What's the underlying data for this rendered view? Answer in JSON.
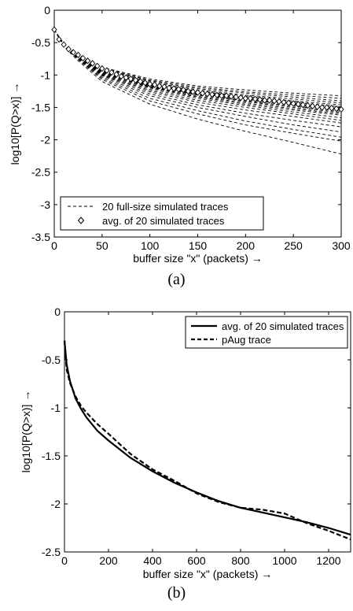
{
  "figure": {
    "caption_a": "(a)",
    "caption_b": "(b)"
  },
  "chart_data": [
    {
      "type": "line",
      "xlabel": "buffer size \"x\" (packets) →",
      "ylabel": "log10[P(Q>x)] →",
      "xlim": [
        0,
        300
      ],
      "ylim": [
        -3.5,
        0
      ],
      "xticks": [
        "0",
        "50",
        "100",
        "150",
        "200",
        "250",
        "300"
      ],
      "yticks": [
        "0",
        "-0.5",
        "-1",
        "-1.5",
        "-2",
        "-2.5",
        "-3",
        "-3.5"
      ],
      "grid": false,
      "legend_position": "bottom-left",
      "legend": [
        "20 full-size simulated traces",
        "avg. of 20 simulated traces"
      ],
      "series": [
        {
          "name": "20 full-size simulated traces",
          "style": "dashed",
          "x": [
            0,
            10,
            25,
            50,
            100,
            150,
            200,
            250,
            300
          ],
          "traces": [
            [
              -0.3,
              -0.52,
              -0.68,
              -0.88,
              -1.06,
              -1.17,
              -1.23,
              -1.28,
              -1.32
            ],
            [
              -0.3,
              -0.52,
              -0.68,
              -0.89,
              -1.08,
              -1.19,
              -1.26,
              -1.31,
              -1.36
            ],
            [
              -0.3,
              -0.52,
              -0.68,
              -0.89,
              -1.09,
              -1.21,
              -1.28,
              -1.34,
              -1.4
            ],
            [
              -0.3,
              -0.52,
              -0.69,
              -0.9,
              -1.11,
              -1.23,
              -1.31,
              -1.37,
              -1.43
            ],
            [
              -0.3,
              -0.52,
              -0.69,
              -0.91,
              -1.13,
              -1.25,
              -1.33,
              -1.4,
              -1.46
            ],
            [
              -0.3,
              -0.52,
              -0.69,
              -0.92,
              -1.14,
              -1.26,
              -1.35,
              -1.42,
              -1.49
            ],
            [
              -0.3,
              -0.52,
              -0.69,
              -0.93,
              -1.15,
              -1.28,
              -1.37,
              -1.45,
              -1.52
            ],
            [
              -0.3,
              -0.52,
              -0.7,
              -0.93,
              -1.16,
              -1.29,
              -1.38,
              -1.46,
              -1.54
            ],
            [
              -0.3,
              -0.53,
              -0.7,
              -0.94,
              -1.17,
              -1.3,
              -1.4,
              -1.48,
              -1.56
            ],
            [
              -0.3,
              -0.53,
              -0.7,
              -0.95,
              -1.18,
              -1.31,
              -1.41,
              -1.5,
              -1.58
            ],
            [
              -0.3,
              -0.53,
              -0.71,
              -0.96,
              -1.19,
              -1.33,
              -1.43,
              -1.52,
              -1.6
            ],
            [
              -0.3,
              -0.53,
              -0.71,
              -0.97,
              -1.2,
              -1.34,
              -1.45,
              -1.54,
              -1.62
            ],
            [
              -0.3,
              -0.53,
              -0.72,
              -0.98,
              -1.22,
              -1.36,
              -1.47,
              -1.57,
              -1.66
            ],
            [
              -0.3,
              -0.53,
              -0.72,
              -0.99,
              -1.24,
              -1.39,
              -1.5,
              -1.6,
              -1.7
            ],
            [
              -0.3,
              -0.54,
              -0.73,
              -1.0,
              -1.26,
              -1.42,
              -1.54,
              -1.64,
              -1.74
            ],
            [
              -0.3,
              -0.54,
              -0.73,
              -1.01,
              -1.29,
              -1.46,
              -1.59,
              -1.7,
              -1.8
            ],
            [
              -0.3,
              -0.54,
              -0.74,
              -1.03,
              -1.32,
              -1.5,
              -1.64,
              -1.77,
              -1.88
            ],
            [
              -0.3,
              -0.55,
              -0.75,
              -1.05,
              -1.36,
              -1.55,
              -1.71,
              -1.84,
              -1.96
            ],
            [
              -0.3,
              -0.55,
              -0.76,
              -1.07,
              -1.4,
              -1.6,
              -1.77,
              -1.9,
              -2.02
            ],
            [
              -0.3,
              -0.56,
              -0.78,
              -1.1,
              -1.45,
              -1.68,
              -1.87,
              -2.04,
              -2.22
            ]
          ]
        },
        {
          "name": "avg. of 20 simulated traces",
          "style": "diamond-markers",
          "x": [
            0,
            5,
            10,
            15,
            20,
            25,
            30,
            35,
            40,
            45,
            50,
            55,
            60,
            65,
            70,
            75,
            80,
            85,
            90,
            95,
            100,
            105,
            110,
            115,
            120,
            125,
            130,
            135,
            140,
            145,
            150,
            155,
            160,
            165,
            170,
            175,
            180,
            185,
            190,
            195,
            200,
            205,
            210,
            215,
            220,
            225,
            230,
            235,
            240,
            245,
            250,
            255,
            260,
            265,
            270,
            275,
            280,
            285,
            290,
            295,
            300
          ],
          "y": [
            -0.3,
            -0.45,
            -0.53,
            -0.6,
            -0.65,
            -0.69,
            -0.74,
            -0.78,
            -0.82,
            -0.86,
            -0.9,
            -0.93,
            -0.96,
            -0.99,
            -1.02,
            -1.04,
            -1.06,
            -1.08,
            -1.1,
            -1.12,
            -1.14,
            -1.15,
            -1.17,
            -1.18,
            -1.2,
            -1.21,
            -1.22,
            -1.23,
            -1.25,
            -1.26,
            -1.27,
            -1.28,
            -1.29,
            -1.3,
            -1.31,
            -1.32,
            -1.32,
            -1.33,
            -1.34,
            -1.35,
            -1.36,
            -1.36,
            -1.37,
            -1.38,
            -1.39,
            -1.39,
            -1.4,
            -1.41,
            -1.42,
            -1.43,
            -1.44,
            -1.45,
            -1.46,
            -1.47,
            -1.48,
            -1.49,
            -1.5,
            -1.5,
            -1.51,
            -1.52,
            -1.53
          ]
        }
      ]
    },
    {
      "type": "line",
      "xlabel": "buffer size \"x\" (packets) →",
      "ylabel": "log10[P(Q>x)] →",
      "xlim": [
        0,
        1300
      ],
      "ylim": [
        -2.5,
        0
      ],
      "xticks": [
        "0",
        "200",
        "400",
        "600",
        "800",
        "1000",
        "1200"
      ],
      "yticks": [
        "0",
        "-0.5",
        "-1",
        "-1.5",
        "-2",
        "-2.5"
      ],
      "grid": false,
      "legend_position": "top-right",
      "legend": [
        "avg. of 20 simulated traces",
        "pAug trace"
      ],
      "series": [
        {
          "name": "avg. of 20 simulated traces",
          "style": "solid",
          "x": [
            0,
            10,
            25,
            50,
            75,
            100,
            150,
            200,
            300,
            400,
            500,
            600,
            700,
            800,
            900,
            1000,
            1100,
            1200,
            1300
          ],
          "y": [
            -0.3,
            -0.55,
            -0.72,
            -0.9,
            -1.01,
            -1.1,
            -1.24,
            -1.34,
            -1.52,
            -1.66,
            -1.78,
            -1.88,
            -1.97,
            -2.04,
            -2.09,
            -2.14,
            -2.19,
            -2.25,
            -2.32
          ]
        },
        {
          "name": "pAug trace",
          "style": "dashed",
          "x": [
            0,
            10,
            25,
            50,
            75,
            100,
            150,
            200,
            300,
            400,
            500,
            600,
            700,
            800,
            900,
            1000,
            1100,
            1200,
            1300
          ],
          "y": [
            -0.3,
            -0.6,
            -0.74,
            -0.88,
            -0.98,
            -1.05,
            -1.17,
            -1.27,
            -1.48,
            -1.64,
            -1.76,
            -1.89,
            -1.98,
            -2.04,
            -2.06,
            -2.1,
            -2.2,
            -2.28,
            -2.37
          ]
        }
      ]
    }
  ]
}
